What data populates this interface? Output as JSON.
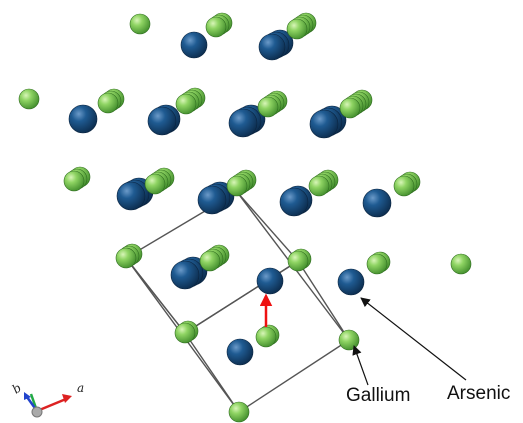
{
  "labels": {
    "gallium": "Gallium",
    "arsenic": "Arsenic"
  },
  "axes": {
    "a": "a",
    "b": "b"
  },
  "colors": {
    "gallium": "#6cc04a",
    "arsenic": "#1d4f80",
    "cell_edge": "#555555",
    "displacement_arrow": "#ee1111",
    "axis_a": "#dd2222",
    "axis_b": "#2244cc",
    "axis_c": "#22aa44"
  },
  "atoms": {
    "gallium_count": 28,
    "arsenic_count": 15
  }
}
